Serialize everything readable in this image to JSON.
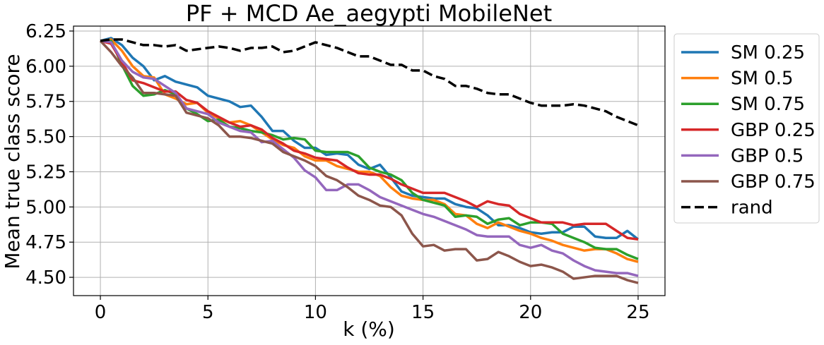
{
  "chart_data": {
    "type": "line",
    "title": "PF + MCD Ae_aegypti MobileNet",
    "xlabel": "k (%)",
    "ylabel": "Mean true class score",
    "xlim": [
      -1.25,
      26.25
    ],
    "ylim": [
      4.37,
      6.285
    ],
    "xticks": [
      0,
      5,
      10,
      15,
      20,
      25
    ],
    "xtick_labels": [
      "0",
      "5",
      "10",
      "15",
      "20",
      "25"
    ],
    "yticks": [
      4.5,
      4.75,
      5.0,
      5.25,
      5.5,
      5.75,
      6.0,
      6.25
    ],
    "ytick_labels": [
      "4.50",
      "4.75",
      "5.00",
      "5.25",
      "5.50",
      "5.75",
      "6.00",
      "6.25"
    ],
    "grid": true,
    "legend_position": "outside-right-top",
    "x": [
      0,
      0.5,
      1,
      1.5,
      2,
      2.5,
      3,
      3.5,
      4,
      4.5,
      5,
      5.5,
      6,
      6.5,
      7,
      7.5,
      8,
      8.5,
      9,
      9.5,
      10,
      10.5,
      11,
      11.5,
      12,
      12.5,
      13,
      13.5,
      14,
      14.5,
      15,
      15.5,
      16,
      16.5,
      17,
      17.5,
      18,
      18.5,
      19,
      19.5,
      20,
      20.5,
      21,
      21.5,
      22,
      22.5,
      23,
      23.5,
      24,
      24.5,
      25
    ],
    "series": [
      {
        "name": "SM 0.25",
        "color": "#1f77b4",
        "dash": "solid",
        "values": [
          6.18,
          6.2,
          6.15,
          6.06,
          6.0,
          5.9,
          5.93,
          5.89,
          5.87,
          5.85,
          5.79,
          5.77,
          5.75,
          5.71,
          5.72,
          5.64,
          5.54,
          5.54,
          5.47,
          5.42,
          5.42,
          5.37,
          5.38,
          5.37,
          5.3,
          5.27,
          5.3,
          5.21,
          5.11,
          5.08,
          5.07,
          5.06,
          5.06,
          5.02,
          5.0,
          4.99,
          4.94,
          4.87,
          4.87,
          4.85,
          4.82,
          4.81,
          4.82,
          4.82,
          4.86,
          4.86,
          4.79,
          4.78,
          4.78,
          4.83,
          4.77
        ]
      },
      {
        "name": "SM 0.5",
        "color": "#ff7f0e",
        "dash": "solid",
        "values": [
          6.18,
          6.19,
          6.11,
          6.0,
          5.93,
          5.92,
          5.8,
          5.77,
          5.73,
          5.74,
          5.67,
          5.63,
          5.6,
          5.61,
          5.58,
          5.53,
          5.48,
          5.44,
          5.42,
          5.36,
          5.33,
          5.33,
          5.29,
          5.27,
          5.25,
          5.25,
          5.22,
          5.14,
          5.08,
          5.06,
          5.05,
          5.05,
          5.02,
          4.95,
          4.94,
          4.88,
          4.85,
          4.89,
          4.86,
          4.83,
          4.81,
          4.78,
          4.76,
          4.73,
          4.71,
          4.69,
          4.7,
          4.7,
          4.67,
          4.63,
          4.61
        ]
      },
      {
        "name": "SM 0.75",
        "color": "#2ca02c",
        "dash": "solid",
        "values": [
          6.18,
          6.18,
          6.01,
          5.86,
          5.79,
          5.8,
          5.83,
          5.8,
          5.7,
          5.66,
          5.61,
          5.62,
          5.57,
          5.56,
          5.54,
          5.53,
          5.51,
          5.48,
          5.49,
          5.48,
          5.4,
          5.39,
          5.39,
          5.39,
          5.36,
          5.28,
          5.25,
          5.23,
          5.19,
          5.1,
          5.05,
          5.03,
          5.01,
          4.93,
          4.94,
          4.93,
          4.88,
          4.91,
          4.92,
          4.87,
          4.89,
          4.89,
          4.88,
          4.81,
          4.78,
          4.75,
          4.71,
          4.7,
          4.7,
          4.66,
          4.63
        ]
      },
      {
        "name": "GBP 0.25",
        "color": "#d62728",
        "dash": "solid",
        "values": [
          6.18,
          6.16,
          6.03,
          5.9,
          5.88,
          5.85,
          5.82,
          5.82,
          5.76,
          5.74,
          5.68,
          5.64,
          5.6,
          5.57,
          5.58,
          5.55,
          5.49,
          5.45,
          5.4,
          5.38,
          5.35,
          5.34,
          5.33,
          5.28,
          5.24,
          5.23,
          5.23,
          5.2,
          5.16,
          5.13,
          5.1,
          5.1,
          5.1,
          5.07,
          5.04,
          5.0,
          5.04,
          5.02,
          5.01,
          4.95,
          4.92,
          4.89,
          4.89,
          4.89,
          4.87,
          4.88,
          4.88,
          4.88,
          4.83,
          4.78,
          4.77
        ]
      },
      {
        "name": "GBP 0.5",
        "color": "#9467bd",
        "dash": "solid",
        "values": [
          6.18,
          6.17,
          6.04,
          5.96,
          5.92,
          5.91,
          5.86,
          5.81,
          5.7,
          5.68,
          5.66,
          5.6,
          5.57,
          5.54,
          5.53,
          5.46,
          5.47,
          5.41,
          5.35,
          5.26,
          5.21,
          5.12,
          5.12,
          5.16,
          5.16,
          5.12,
          5.07,
          5.04,
          5.01,
          4.98,
          4.95,
          4.93,
          4.9,
          4.87,
          4.84,
          4.8,
          4.79,
          4.79,
          4.79,
          4.73,
          4.71,
          4.73,
          4.69,
          4.67,
          4.62,
          4.58,
          4.55,
          4.54,
          4.53,
          4.53,
          4.51
        ]
      },
      {
        "name": "GBP 0.75",
        "color": "#8c564b",
        "dash": "solid",
        "values": [
          6.18,
          6.1,
          6.0,
          5.92,
          5.81,
          5.81,
          5.8,
          5.79,
          5.67,
          5.65,
          5.63,
          5.58,
          5.5,
          5.5,
          5.49,
          5.47,
          5.45,
          5.39,
          5.36,
          5.33,
          5.29,
          5.22,
          5.19,
          5.14,
          5.08,
          5.05,
          5.01,
          5.0,
          4.94,
          4.81,
          4.72,
          4.73,
          4.69,
          4.7,
          4.7,
          4.62,
          4.63,
          4.68,
          4.65,
          4.61,
          4.58,
          4.59,
          4.57,
          4.54,
          4.49,
          4.5,
          4.51,
          4.51,
          4.51,
          4.48,
          4.46
        ]
      },
      {
        "name": "rand",
        "color": "#000000",
        "dash": "dashed",
        "values": [
          6.18,
          6.19,
          6.19,
          6.17,
          6.15,
          6.15,
          6.14,
          6.15,
          6.11,
          6.12,
          6.13,
          6.14,
          6.13,
          6.11,
          6.13,
          6.13,
          6.14,
          6.1,
          6.11,
          6.14,
          6.17,
          6.15,
          6.13,
          6.1,
          6.07,
          6.07,
          6.04,
          6.01,
          6.01,
          5.97,
          5.97,
          5.93,
          5.91,
          5.86,
          5.86,
          5.84,
          5.81,
          5.8,
          5.8,
          5.77,
          5.74,
          5.72,
          5.72,
          5.72,
          5.73,
          5.72,
          5.7,
          5.68,
          5.64,
          5.61,
          5.58
        ]
      }
    ]
  }
}
